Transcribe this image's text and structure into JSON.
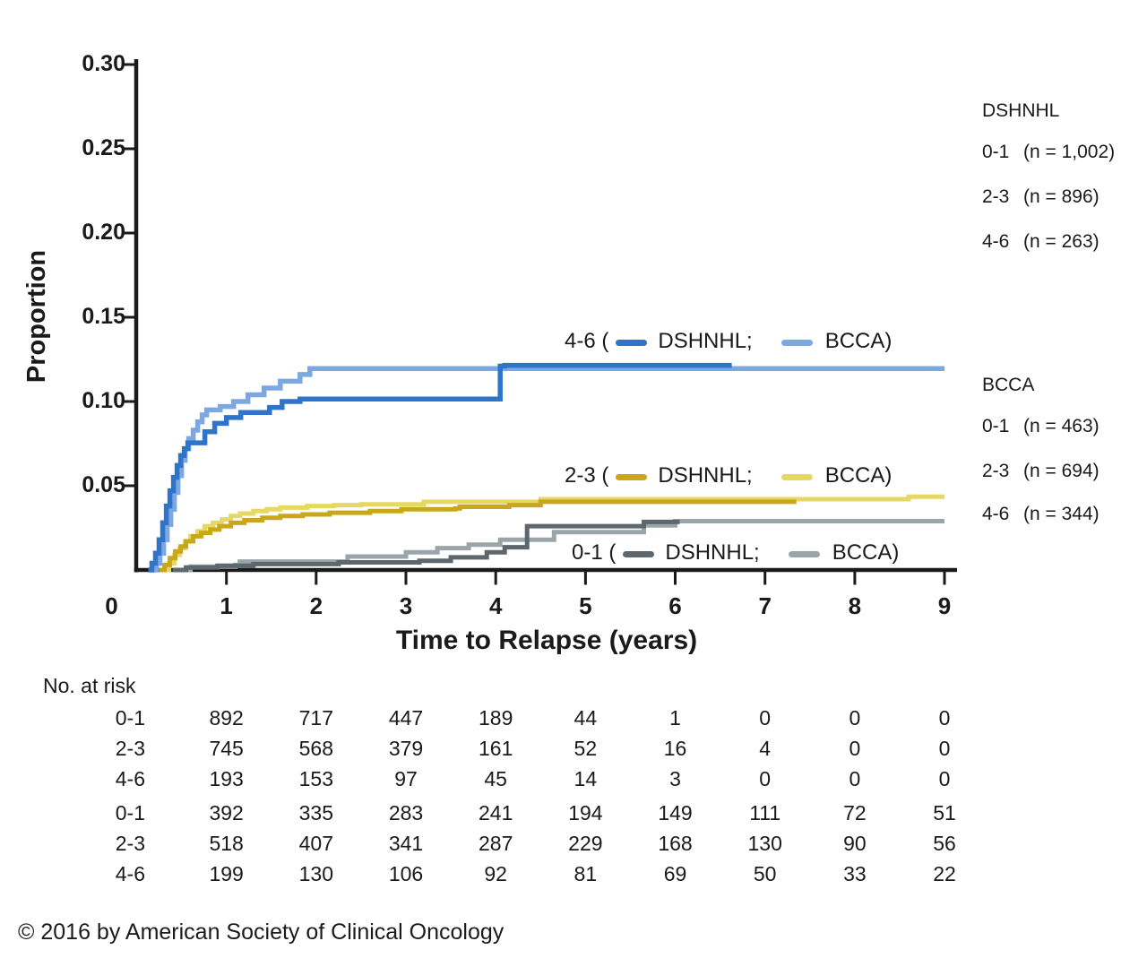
{
  "chart_data": {
    "type": "line",
    "subtype": "step-cumulative-incidence",
    "title": "",
    "xlabel": "Time to Relapse (years)",
    "ylabel": "Proportion",
    "xlim": [
      0,
      9
    ],
    "ylim": [
      0,
      0.3
    ],
    "grid": false,
    "xticks": {
      "values": [
        0,
        1,
        2,
        3,
        4,
        5,
        6,
        7,
        8,
        9
      ],
      "labels": [
        "0",
        "1",
        "2",
        "3",
        "4",
        "5",
        "6",
        "7",
        "8",
        "9"
      ]
    },
    "yticks": {
      "values": [
        0.05,
        0.1,
        0.15,
        0.2,
        0.25,
        0.3
      ],
      "labels": [
        "0.05",
        "0.10",
        "0.15",
        "0.20",
        "0.25",
        "0.30"
      ]
    },
    "series": [
      {
        "id": "bcca_01",
        "cohort": "BCCA",
        "group": "0-1",
        "color": "#9aa5a9",
        "points": [
          [
            0.45,
            0
          ],
          [
            0.6,
            0.002
          ],
          [
            1.1,
            0.003
          ],
          [
            1.15,
            0.005
          ],
          [
            2.3,
            0.005
          ],
          [
            2.35,
            0.008
          ],
          [
            2.95,
            0.008
          ],
          [
            3.0,
            0.0105
          ],
          [
            3.3,
            0.0105
          ],
          [
            3.35,
            0.013
          ],
          [
            3.65,
            0.013
          ],
          [
            3.7,
            0.015
          ],
          [
            4.0,
            0.015
          ],
          [
            4.05,
            0.018
          ],
          [
            4.6,
            0.018
          ],
          [
            4.65,
            0.0225
          ],
          [
            5.6,
            0.0225
          ],
          [
            5.65,
            0.0265
          ],
          [
            5.95,
            0.0265
          ],
          [
            6.0,
            0.029
          ],
          [
            9.0,
            0.029
          ]
        ]
      },
      {
        "id": "dshnhl_01",
        "cohort": "DSHNHL",
        "group": "0-1",
        "color": "#5d676d",
        "points": [
          [
            0.4,
            0
          ],
          [
            0.55,
            0.0015
          ],
          [
            0.9,
            0.0025
          ],
          [
            1.3,
            0.0035
          ],
          [
            2.2,
            0.0035
          ],
          [
            2.25,
            0.0045
          ],
          [
            3.1,
            0.0045
          ],
          [
            3.15,
            0.0055
          ],
          [
            3.45,
            0.0055
          ],
          [
            3.5,
            0.0075
          ],
          [
            3.85,
            0.0075
          ],
          [
            3.9,
            0.0105
          ],
          [
            4.05,
            0.0105
          ],
          [
            4.1,
            0.0135
          ],
          [
            4.3,
            0.0135
          ],
          [
            4.35,
            0.026
          ],
          [
            5.6,
            0.026
          ],
          [
            5.65,
            0.0285
          ],
          [
            6.05,
            0.0285
          ]
        ]
      },
      {
        "id": "bcca_23",
        "cohort": "BCCA",
        "group": "2-3",
        "color": "#e5d964",
        "points": [
          [
            0.3,
            0
          ],
          [
            0.36,
            0.004
          ],
          [
            0.42,
            0.009
          ],
          [
            0.48,
            0.013
          ],
          [
            0.54,
            0.017
          ],
          [
            0.6,
            0.02
          ],
          [
            0.68,
            0.023
          ],
          [
            0.76,
            0.026
          ],
          [
            0.85,
            0.028
          ],
          [
            0.95,
            0.03
          ],
          [
            1.05,
            0.032
          ],
          [
            1.15,
            0.0335
          ],
          [
            1.3,
            0.035
          ],
          [
            1.45,
            0.036
          ],
          [
            1.6,
            0.037
          ],
          [
            1.9,
            0.038
          ],
          [
            2.2,
            0.0385
          ],
          [
            2.5,
            0.039
          ],
          [
            3.15,
            0.039
          ],
          [
            3.2,
            0.0405
          ],
          [
            4.45,
            0.0405
          ],
          [
            4.5,
            0.042
          ],
          [
            8.55,
            0.042
          ],
          [
            8.6,
            0.0435
          ],
          [
            9.0,
            0.0435
          ]
        ]
      },
      {
        "id": "dshnhl_23",
        "cohort": "DSHNHL",
        "group": "2-3",
        "color": "#c8a81a",
        "points": [
          [
            0.25,
            0
          ],
          [
            0.31,
            0.003
          ],
          [
            0.37,
            0.007
          ],
          [
            0.43,
            0.011
          ],
          [
            0.49,
            0.014
          ],
          [
            0.55,
            0.017
          ],
          [
            0.63,
            0.02
          ],
          [
            0.72,
            0.022
          ],
          [
            0.82,
            0.024
          ],
          [
            0.92,
            0.026
          ],
          [
            1.05,
            0.028
          ],
          [
            1.2,
            0.0295
          ],
          [
            1.4,
            0.031
          ],
          [
            1.6,
            0.032
          ],
          [
            1.85,
            0.033
          ],
          [
            2.15,
            0.034
          ],
          [
            2.6,
            0.035
          ],
          [
            2.95,
            0.036
          ],
          [
            3.55,
            0.0365
          ],
          [
            3.6,
            0.0375
          ],
          [
            4.1,
            0.0375
          ],
          [
            4.15,
            0.0385
          ],
          [
            4.45,
            0.0385
          ],
          [
            4.5,
            0.0405
          ],
          [
            7.35,
            0.0405
          ]
        ]
      },
      {
        "id": "bcca_46",
        "cohort": "BCCA",
        "group": "4-6",
        "color": "#7da7e1",
        "points": [
          [
            0.18,
            0
          ],
          [
            0.22,
            0.004
          ],
          [
            0.26,
            0.01
          ],
          [
            0.3,
            0.018
          ],
          [
            0.34,
            0.027
          ],
          [
            0.38,
            0.036
          ],
          [
            0.42,
            0.046
          ],
          [
            0.46,
            0.056
          ],
          [
            0.5,
            0.065
          ],
          [
            0.54,
            0.072
          ],
          [
            0.58,
            0.078
          ],
          [
            0.63,
            0.083
          ],
          [
            0.68,
            0.088
          ],
          [
            0.73,
            0.092
          ],
          [
            0.78,
            0.095
          ],
          [
            0.9,
            0.095
          ],
          [
            0.93,
            0.097
          ],
          [
            1.05,
            0.097
          ],
          [
            1.08,
            0.1
          ],
          [
            1.2,
            0.1
          ],
          [
            1.24,
            0.104
          ],
          [
            1.38,
            0.104
          ],
          [
            1.42,
            0.108
          ],
          [
            1.55,
            0.108
          ],
          [
            1.6,
            0.112
          ],
          [
            1.78,
            0.112
          ],
          [
            1.82,
            0.116
          ],
          [
            1.9,
            0.116
          ],
          [
            1.93,
            0.1195
          ],
          [
            9.0,
            0.1195
          ]
        ]
      },
      {
        "id": "dshnhl_46",
        "cohort": "DSHNHL",
        "group": "4-6",
        "color": "#2e74c9",
        "points": [
          [
            0.13,
            0
          ],
          [
            0.17,
            0.004
          ],
          [
            0.21,
            0.01
          ],
          [
            0.25,
            0.018
          ],
          [
            0.29,
            0.028
          ],
          [
            0.33,
            0.038
          ],
          [
            0.37,
            0.047
          ],
          [
            0.41,
            0.055
          ],
          [
            0.45,
            0.062
          ],
          [
            0.49,
            0.068
          ],
          [
            0.53,
            0.072
          ],
          [
            0.57,
            0.0755
          ],
          [
            0.73,
            0.0755
          ],
          [
            0.76,
            0.082
          ],
          [
            0.84,
            0.082
          ],
          [
            0.87,
            0.087
          ],
          [
            0.97,
            0.087
          ],
          [
            1.0,
            0.0905
          ],
          [
            1.12,
            0.0905
          ],
          [
            1.16,
            0.0935
          ],
          [
            1.44,
            0.0935
          ],
          [
            1.48,
            0.0965
          ],
          [
            1.58,
            0.0965
          ],
          [
            1.62,
            0.1
          ],
          [
            1.78,
            0.1
          ],
          [
            1.82,
            0.1015
          ],
          [
            4.02,
            0.1015
          ],
          [
            4.05,
            0.121
          ],
          [
            4.1,
            0.1215
          ],
          [
            6.63,
            0.1215
          ]
        ]
      }
    ]
  },
  "inline_legends": [
    {
      "pos": "il-46",
      "prefix": "4-6 (",
      "dshnhl_label": "DSHNHL;",
      "bcca_label": "BCCA)",
      "dark_series": "dshnhl_46",
      "light_series": "bcca_46"
    },
    {
      "pos": "il-23",
      "prefix": "2-3 (",
      "dshnhl_label": "DSHNHL;",
      "bcca_label": "BCCA)",
      "dark_series": "dshnhl_23",
      "light_series": "bcca_23"
    },
    {
      "pos": "il-01",
      "prefix": "0-1 (",
      "dshnhl_label": "DSHNHL;",
      "bcca_label": "BCCA)",
      "dark_series": "dshnhl_01",
      "light_series": "bcca_01"
    }
  ],
  "side_legend": {
    "groups": [
      {
        "header": "DSHNHL",
        "entries": [
          {
            "label": "0-1",
            "count": "(n = 1,002)"
          },
          {
            "label": "2-3",
            "count": "(n = 896)"
          },
          {
            "label": "4-6",
            "count": "(n = 263)"
          }
        ]
      },
      {
        "header": "BCCA",
        "entries": [
          {
            "label": "0-1",
            "count": "(n = 463)"
          },
          {
            "label": "2-3",
            "count": "(n = 694)"
          },
          {
            "label": "4-6",
            "count": "(n = 344)"
          }
        ]
      }
    ]
  },
  "risk_table": {
    "title": "No. at risk",
    "rows": [
      {
        "label": "0-1",
        "values": [
          "892",
          "717",
          "447",
          "189",
          "44",
          "1",
          "0",
          "0",
          "0"
        ]
      },
      {
        "label": "2-3",
        "values": [
          "745",
          "568",
          "379",
          "161",
          "52",
          "16",
          "4",
          "0",
          "0"
        ]
      },
      {
        "label": "4-6",
        "values": [
          "193",
          "153",
          "97",
          "45",
          "14",
          "3",
          "0",
          "0",
          "0"
        ]
      },
      {
        "label": "0-1",
        "values": [
          "392",
          "335",
          "283",
          "241",
          "194",
          "149",
          "111",
          "72",
          "51"
        ]
      },
      {
        "label": "2-3",
        "values": [
          "518",
          "407",
          "341",
          "287",
          "229",
          "168",
          "130",
          "90",
          "56"
        ]
      },
      {
        "label": "4-6",
        "values": [
          "199",
          "130",
          "106",
          "92",
          "81",
          "69",
          "50",
          "33",
          "22"
        ]
      }
    ]
  },
  "footer": "© 2016 by American Society of Clinical Oncology",
  "colors": {
    "axis": "#1a1a1a",
    "text": "#1a1a1a",
    "dshnhl_46": "#2e74c9",
    "bcca_46": "#7da7e1",
    "dshnhl_23": "#c8a81a",
    "bcca_23": "#e5d964",
    "dshnhl_01": "#5d676d",
    "bcca_01": "#9aa5a9"
  }
}
